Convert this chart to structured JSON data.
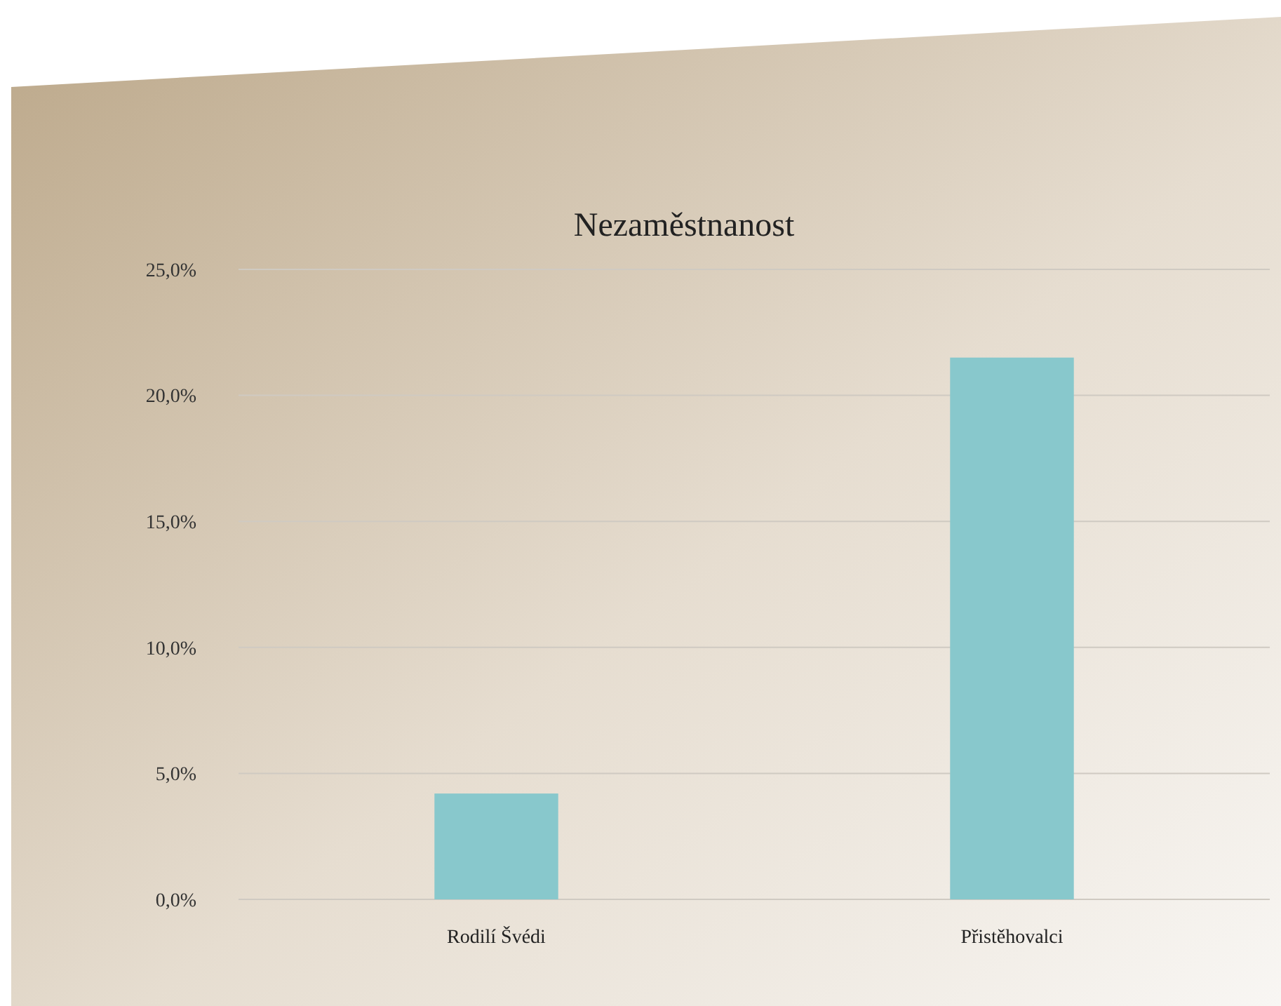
{
  "chart_data": {
    "type": "bar",
    "title": "Nezaměstnanost",
    "categories": [
      "Rodilí Švédi",
      "Přistěhovalci"
    ],
    "values": [
      4.2,
      21.5
    ],
    "color": "#88c8cc",
    "ylim": [
      0,
      25
    ],
    "yticks": [
      {
        "value": 0,
        "label": "0,0%"
      },
      {
        "value": 5,
        "label": "5,0%"
      },
      {
        "value": 10,
        "label": "10,0%"
      },
      {
        "value": 15,
        "label": "15,0%"
      },
      {
        "value": 20,
        "label": "20,0%"
      },
      {
        "value": 25,
        "label": "25,0%"
      }
    ],
    "grid": "y"
  }
}
